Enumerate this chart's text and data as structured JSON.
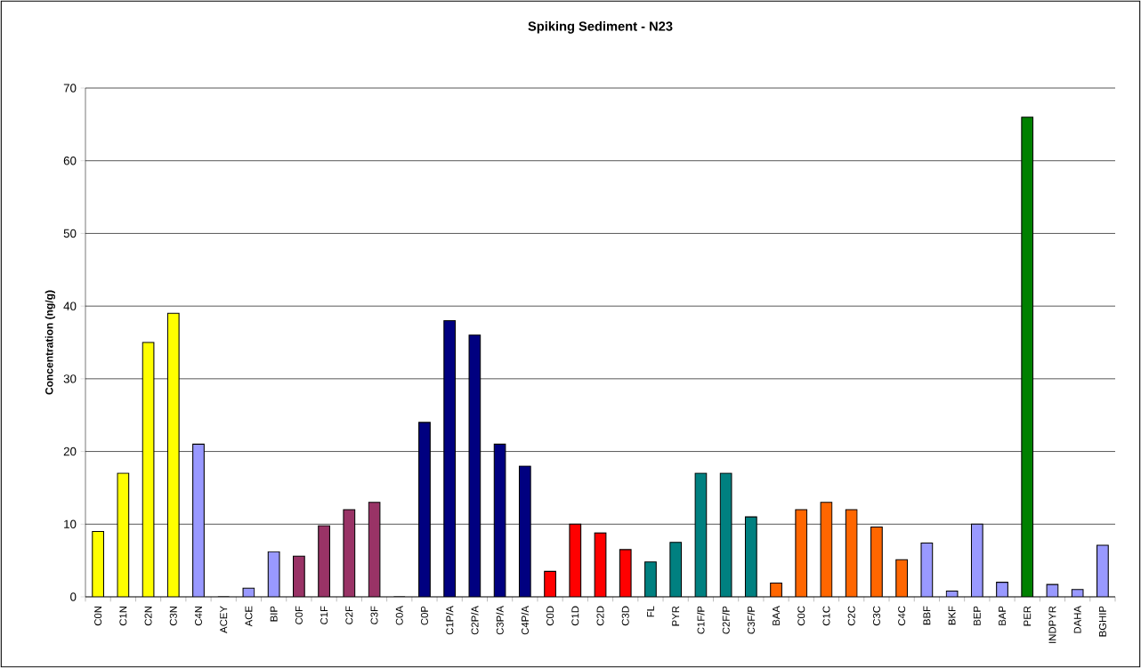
{
  "chart_data": {
    "type": "bar",
    "title": "Spiking Sediment - N23",
    "ylabel": "Concentration (ng/g)",
    "categories": [
      "C0N",
      "C1N",
      "C2N",
      "C3N",
      "C4N",
      "ACEY",
      "ACE",
      "BIP",
      "C0F",
      "C1F",
      "C2F",
      "C3F",
      "C0A",
      "C0P",
      "C1P/A",
      "C2P/A",
      "C3P/A",
      "C4P/A",
      "C0D",
      "C1D",
      "C2D",
      "C3D",
      "FL",
      "PYR",
      "C1F/P",
      "C2F/P",
      "C3F/P",
      "BAA",
      "C0C",
      "C1C",
      "C2C",
      "C3C",
      "C4C",
      "BBF",
      "BKF",
      "BEP",
      "BAP",
      "PER",
      "INDPYR",
      "DAHA",
      "BGHIP"
    ],
    "values": [
      9,
      17,
      35,
      39,
      21,
      0,
      1.2,
      6.2,
      5.6,
      9.8,
      12,
      13,
      0,
      24,
      38,
      36,
      21,
      18,
      3.5,
      10,
      8.8,
      6.5,
      4.8,
      7.5,
      17,
      17,
      11,
      1.9,
      12,
      13,
      12,
      9.6,
      5.1,
      7.4,
      0.8,
      10,
      2,
      66,
      1.7,
      1,
      7.1
    ],
    "colors": [
      "#ffff00",
      "#ffff00",
      "#ffff00",
      "#ffff00",
      "#9999ff",
      "#9999ff",
      "#9999ff",
      "#9999ff",
      "#993366",
      "#993366",
      "#993366",
      "#993366",
      "#000080",
      "#000080",
      "#000080",
      "#000080",
      "#000080",
      "#000080",
      "#ff0000",
      "#ff0000",
      "#ff0000",
      "#ff0000",
      "#008080",
      "#008080",
      "#008080",
      "#008080",
      "#008080",
      "#ff6600",
      "#ff6600",
      "#ff6600",
      "#ff6600",
      "#ff6600",
      "#ff6600",
      "#9999ff",
      "#9999ff",
      "#9999ff",
      "#9999ff",
      "#008000",
      "#9999ff",
      "#9999ff",
      "#9999ff"
    ],
    "ylim": [
      0,
      70
    ],
    "yticks": [
      0,
      10,
      20,
      30,
      40,
      50,
      60,
      70
    ],
    "grid": "y"
  }
}
